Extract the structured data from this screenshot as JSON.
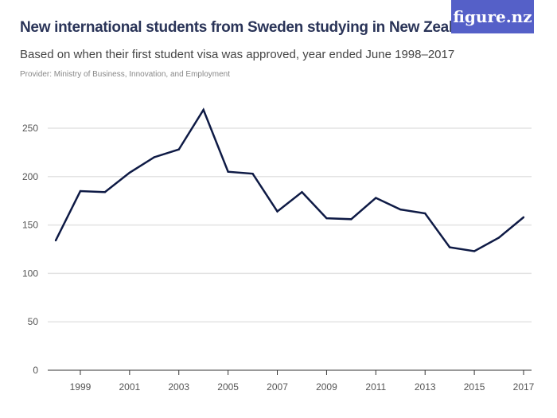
{
  "header": {
    "title": "New international students from Sweden studying in New Zealand",
    "subtitle": "Based on when their first student visa was approved, year ended June 1998–2017",
    "provider": "Provider: Ministry of Business, Innovation, and Employment",
    "logo": "figure.nz"
  },
  "colors": {
    "line": "#0e1a45",
    "grid": "#e3e3e3",
    "logo_bg": "#5560c8"
  },
  "chart_data": {
    "type": "line",
    "title": "New international students from Sweden studying in New Zealand",
    "xlabel": "",
    "ylabel": "",
    "x": [
      1998,
      1999,
      2000,
      2001,
      2002,
      2003,
      2004,
      2005,
      2006,
      2007,
      2008,
      2009,
      2010,
      2011,
      2012,
      2013,
      2014,
      2015,
      2016,
      2017
    ],
    "values": [
      134,
      185,
      184,
      204,
      220,
      228,
      269,
      205,
      203,
      164,
      184,
      157,
      156,
      178,
      166,
      162,
      127,
      123,
      137,
      158
    ],
    "ylim": [
      0,
      250
    ],
    "yticks": [
      0,
      50,
      100,
      150,
      200,
      250
    ],
    "xticks": [
      1999,
      2001,
      2003,
      2005,
      2007,
      2009,
      2011,
      2013,
      2015,
      2017
    ],
    "grid": true
  }
}
